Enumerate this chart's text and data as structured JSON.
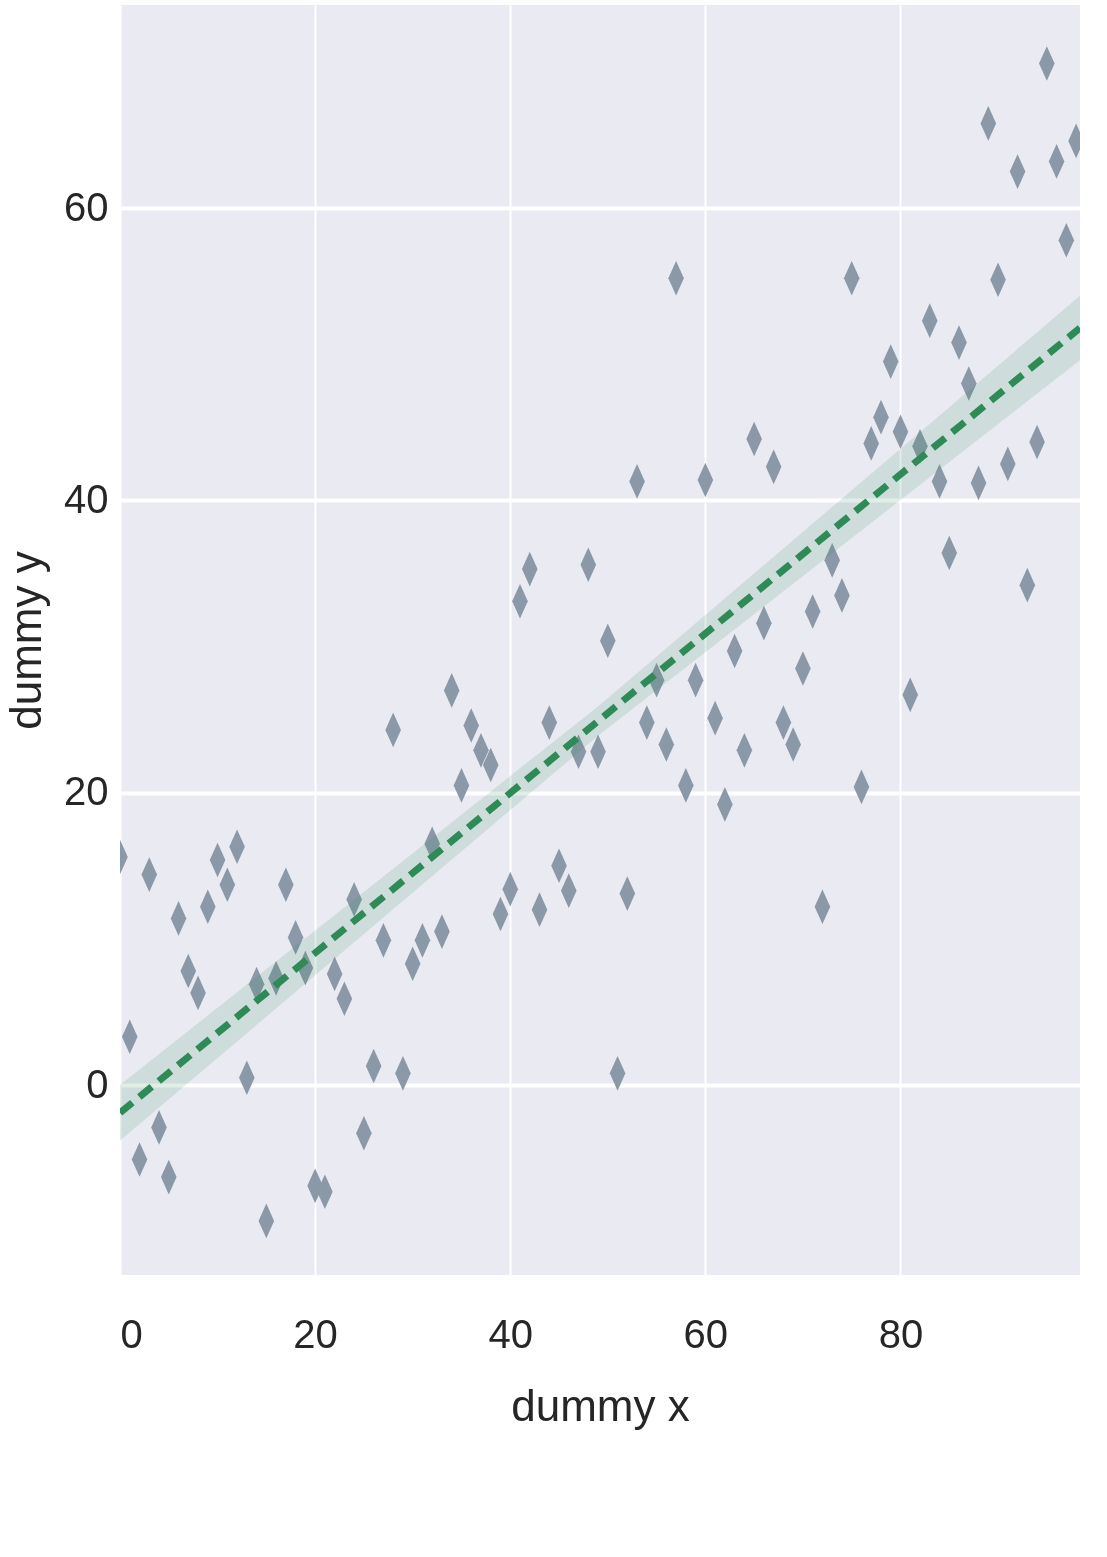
{
  "chart_data": {
    "type": "scatter",
    "xlabel": "dummy x",
    "ylabel": "dummy y",
    "xlim": [
      0,
      98.4
    ],
    "ylim": [
      -13,
      73.9
    ],
    "xticks": [
      0,
      20,
      40,
      60,
      80
    ],
    "yticks": [
      0,
      20,
      40,
      60
    ],
    "grid": true,
    "series": [
      {
        "marker": "diamond",
        "color": "#8a98a7",
        "x": [
          0,
          1,
          2,
          3,
          4,
          5,
          6,
          7,
          8,
          9,
          10,
          11,
          12,
          13,
          14,
          15,
          16,
          17,
          18,
          19,
          20,
          21,
          22,
          23,
          24,
          25,
          26,
          27,
          28,
          29,
          30,
          31,
          32,
          33,
          34,
          35,
          36,
          37,
          38,
          39,
          40,
          41,
          42,
          43,
          44,
          45,
          46,
          47,
          48,
          49,
          50,
          51,
          52,
          53,
          54,
          55,
          56,
          57,
          58,
          59,
          60,
          61,
          62,
          63,
          64,
          65,
          66,
          67,
          68,
          69,
          70,
          71,
          72,
          73,
          74,
          75,
          76,
          77,
          78,
          79,
          80,
          81,
          82,
          83,
          84,
          85,
          86,
          87,
          88,
          89,
          90,
          91,
          92,
          93,
          94,
          95,
          96,
          97,
          98
        ],
        "values": [
          15.6,
          3.3,
          -5.1,
          14.4,
          -2.9,
          -6.3,
          11.4,
          7.8,
          6.3,
          12.2,
          15.4,
          13.7,
          16.3,
          0.5,
          6.9,
          -9.3,
          7.3,
          13.7,
          10.1,
          8.0,
          -6.9,
          -7.3,
          7.6,
          5.9,
          12.7,
          -3.3,
          1.3,
          9.9,
          24.3,
          0.8,
          8.3,
          9.9,
          16.5,
          10.5,
          27.0,
          20.5,
          24.6,
          22.9,
          21.9,
          11.7,
          13.4,
          33.1,
          35.3,
          12.0,
          24.8,
          15.0,
          13.3,
          22.8,
          35.6,
          22.8,
          30.4,
          0.8,
          13.1,
          41.3,
          24.8,
          27.7,
          23.3,
          55.2,
          20.5,
          27.7,
          41.4,
          25.1,
          19.2,
          29.7,
          22.9,
          44.2,
          31.6,
          42.3,
          24.8,
          23.3,
          28.5,
          32.4,
          12.2,
          35.9,
          33.5,
          55.2,
          20.4,
          43.9,
          45.7,
          49.5,
          44.7,
          26.7,
          43.7,
          52.3,
          41.3,
          36.4,
          50.8,
          48.0,
          41.2,
          65.8,
          55.1,
          42.5,
          62.5,
          34.2,
          44.0,
          69.9,
          63.2,
          57.8,
          64.6
        ]
      },
      {
        "type": "line",
        "line_style": "dashed",
        "color": "#2e8b57",
        "x": [
          0,
          49,
          98.4
        ],
        "values": [
          -1.9,
          24.9,
          51.8
        ],
        "lower": [
          -3.8,
          23.9,
          49.6
        ],
        "upper": [
          0.0,
          25.9,
          54.0
        ]
      }
    ]
  }
}
